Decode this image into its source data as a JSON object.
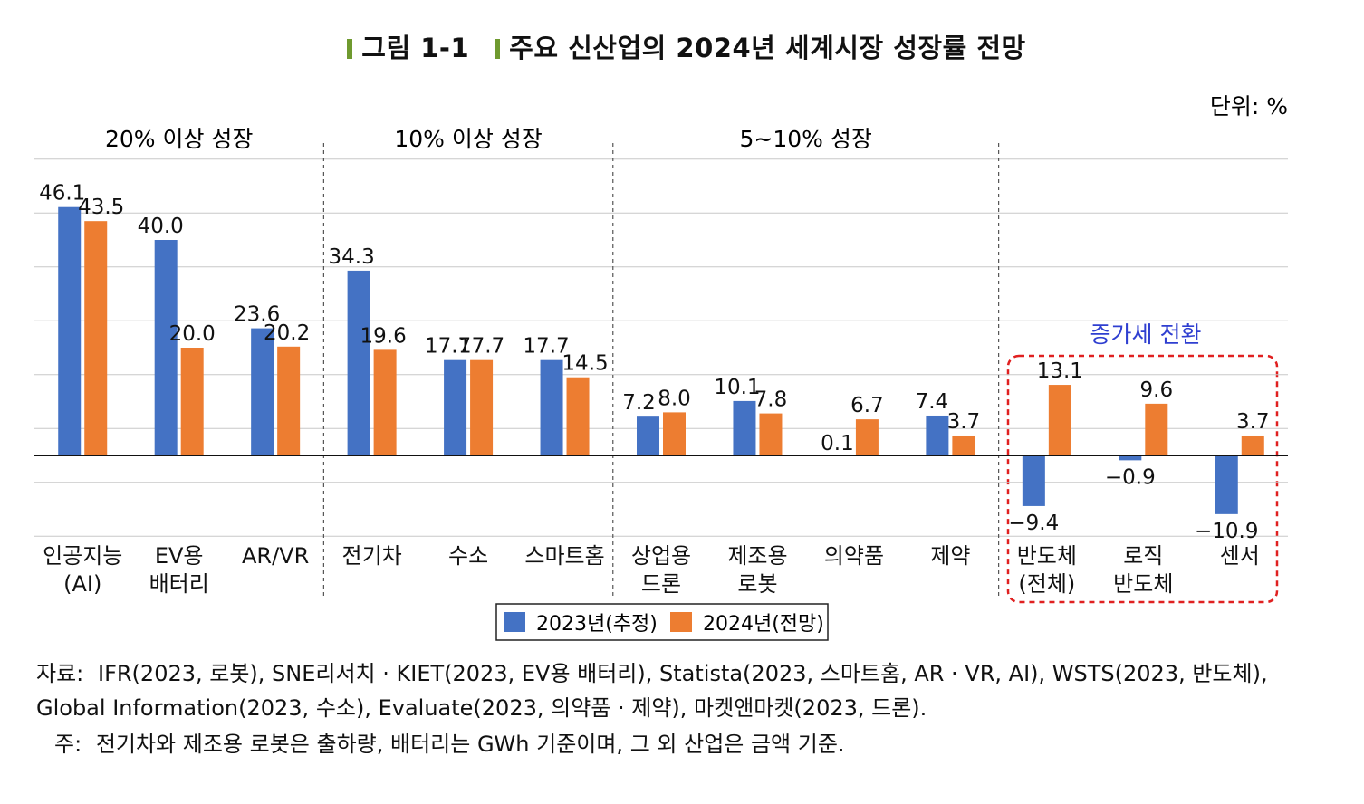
{
  "figure": {
    "label": "그림 1-1",
    "title": "주요 신산업의 2024년 세계시장 성장률 전망",
    "unit": "단위: %",
    "highlight_label": "증가세 전환"
  },
  "groups": [
    {
      "label": "20% 이상 성장"
    },
    {
      "label": "10% 이상 성장"
    },
    {
      "label": "5~10% 성장"
    }
  ],
  "chart_data": {
    "type": "bar",
    "categories": [
      "인공지능\n(AI)",
      "EV용\n배터리",
      "AR/VR",
      "전기차",
      "수소",
      "스마트홈",
      "상업용\n드론",
      "제조용\n로봇",
      "의약품",
      "제약",
      "반도체\n(전체)",
      "로직\n반도체",
      "센서"
    ],
    "series": [
      {
        "name": "2023년(추정)",
        "color": "#4472c4",
        "values": [
          46.1,
          40.0,
          23.6,
          34.3,
          17.7,
          17.7,
          7.2,
          10.1,
          0.1,
          7.4,
          -9.4,
          -0.9,
          -10.9
        ]
      },
      {
        "name": "2024년(전망)",
        "color": "#ed7d31",
        "values": [
          43.5,
          20.0,
          20.2,
          19.6,
          17.7,
          14.5,
          8.0,
          7.8,
          6.7,
          3.7,
          13.1,
          9.6,
          3.7
        ]
      }
    ],
    "ylim": [
      -15,
      55
    ],
    "ytick_step": 10,
    "grid": true,
    "legend": "bottom-center"
  },
  "source": {
    "label": "자료:",
    "text": "IFR(2023, 로봇), SNE리서치 · KIET(2023, EV용 배터리), Statista(2023, 스마트홈, AR · VR, AI), WSTS(2023, 반도체), Global Information(2023, 수소), Evaluate(2023, 의약품 · 제약), 마켓앤마켓(2023, 드론)."
  },
  "note": {
    "label": "주:",
    "text": "전기차와 제조용 로봇은 출하량, 배터리는 GWh 기준이며, 그 외 산업은 금액 기준."
  }
}
